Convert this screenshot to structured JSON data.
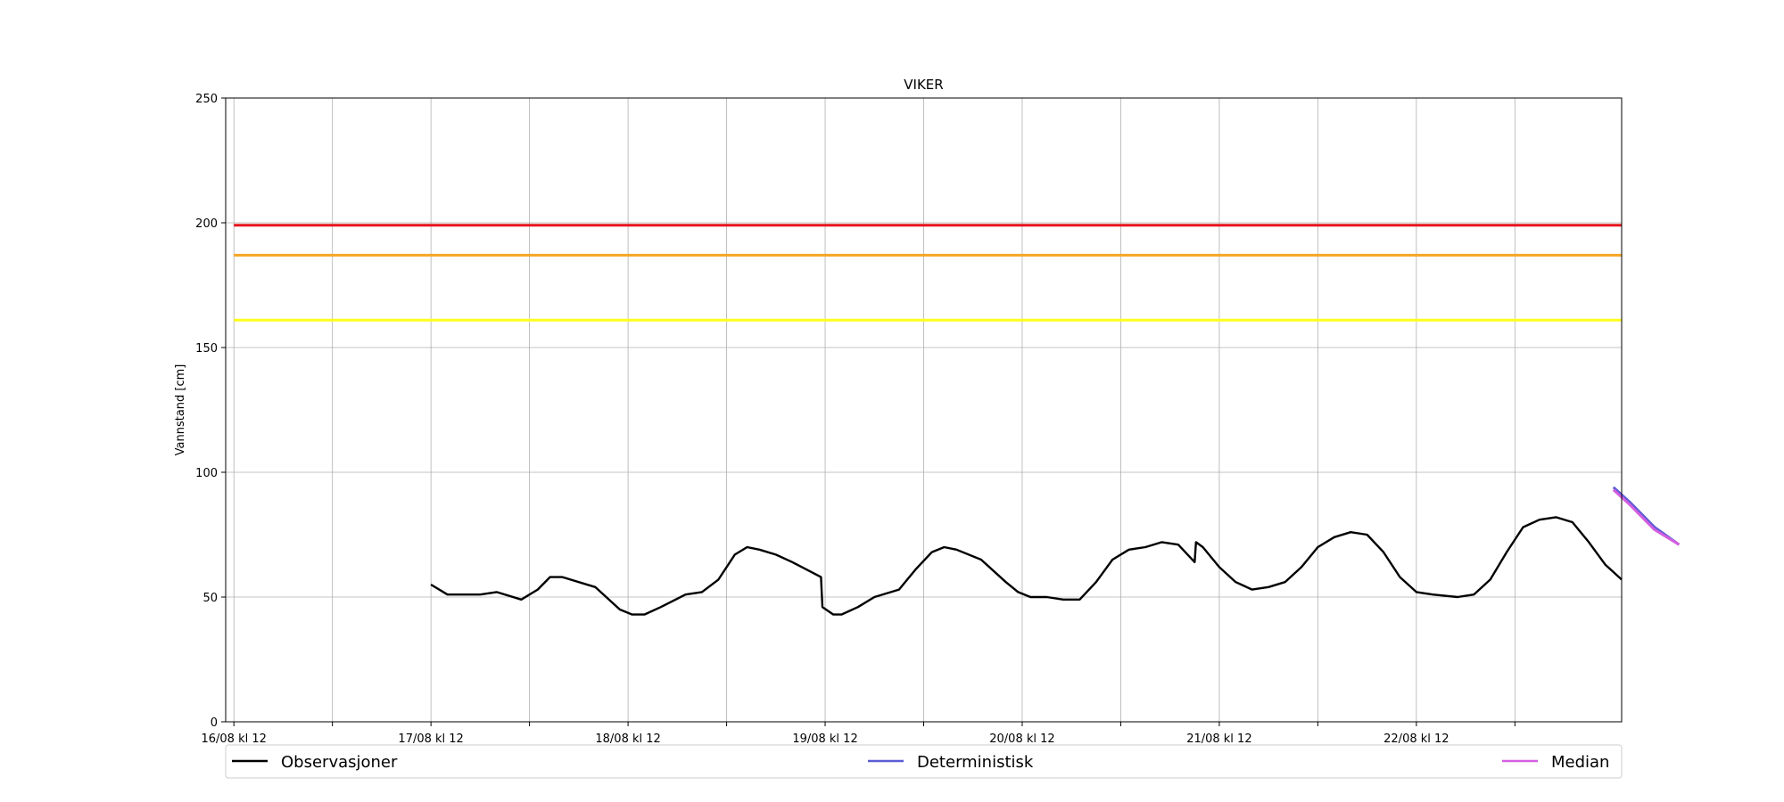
{
  "chart_data": {
    "type": "line",
    "title": "VIKER",
    "ylabel": "Vannstand [cm]",
    "xlabel": "",
    "ylim": [
      0,
      250
    ],
    "yticks": [
      0,
      50,
      100,
      150,
      200,
      250
    ],
    "xlim": [
      "2023-08-16T11:00",
      "2023-08-23T13:00"
    ],
    "xticks": [
      {
        "x": "2023-08-16T12:00",
        "label": "16/08 kl 12"
      },
      {
        "x": "2023-08-17T00:00",
        "label": ""
      },
      {
        "x": "2023-08-17T12:00",
        "label": "17/08 kl 12"
      },
      {
        "x": "2023-08-18T00:00",
        "label": ""
      },
      {
        "x": "2023-08-18T12:00",
        "label": "18/08 kl 12"
      },
      {
        "x": "2023-08-19T00:00",
        "label": ""
      },
      {
        "x": "2023-08-19T12:00",
        "label": "19/08 kl 12"
      },
      {
        "x": "2023-08-20T00:00",
        "label": ""
      },
      {
        "x": "2023-08-20T12:00",
        "label": "20/08 kl 12"
      },
      {
        "x": "2023-08-21T00:00",
        "label": ""
      },
      {
        "x": "2023-08-21T12:00",
        "label": "21/08 kl 12"
      },
      {
        "x": "2023-08-22T00:00",
        "label": ""
      },
      {
        "x": "2023-08-22T12:00",
        "label": "22/08 kl 12"
      },
      {
        "x": "2023-08-23T00:00",
        "label": ""
      }
    ],
    "grid": true,
    "legend_placement": "bottom",
    "threshold_lines": [
      {
        "y": 199,
        "color": "#e8141c"
      },
      {
        "y": 187,
        "color": "#f5a623"
      },
      {
        "y": 161,
        "color": "#ffff1a"
      }
    ],
    "series": [
      {
        "name": "Observasjoner",
        "color": "#000000",
        "points": [
          [
            "2023-08-17T12:00",
            55
          ],
          [
            "2023-08-17T14:00",
            51
          ],
          [
            "2023-08-17T18:00",
            51
          ],
          [
            "2023-08-17T20:00",
            52
          ],
          [
            "2023-08-17T23:00",
            49
          ],
          [
            "2023-08-18T01:00",
            53
          ],
          [
            "2023-08-18T02:30",
            58
          ],
          [
            "2023-08-18T04:00",
            58
          ],
          [
            "2023-08-18T08:00",
            54
          ],
          [
            "2023-08-18T11:00",
            45
          ],
          [
            "2023-08-18T12:30",
            43
          ],
          [
            "2023-08-18T14:00",
            43
          ],
          [
            "2023-08-18T16:00",
            46
          ],
          [
            "2023-08-18T19:00",
            51
          ],
          [
            "2023-08-18T21:00",
            52
          ],
          [
            "2023-08-18T23:00",
            57
          ],
          [
            "2023-08-19T01:00",
            67
          ],
          [
            "2023-08-19T02:30",
            70
          ],
          [
            "2023-08-19T04:00",
            69
          ],
          [
            "2023-08-19T06:00",
            67
          ],
          [
            "2023-08-19T08:00",
            64
          ],
          [
            "2023-08-19T11:30",
            58
          ],
          [
            "2023-08-19T11:40",
            46
          ],
          [
            "2023-08-19T13:00",
            43
          ],
          [
            "2023-08-19T14:00",
            43
          ],
          [
            "2023-08-19T16:00",
            46
          ],
          [
            "2023-08-19T18:00",
            50
          ],
          [
            "2023-08-19T21:00",
            53
          ],
          [
            "2023-08-19T23:00",
            61
          ],
          [
            "2023-08-20T01:00",
            68
          ],
          [
            "2023-08-20T02:30",
            70
          ],
          [
            "2023-08-20T04:00",
            69
          ],
          [
            "2023-08-20T07:00",
            65
          ],
          [
            "2023-08-20T10:00",
            56
          ],
          [
            "2023-08-20T11:30",
            52
          ],
          [
            "2023-08-20T13:00",
            50
          ],
          [
            "2023-08-20T15:00",
            50
          ],
          [
            "2023-08-20T17:00",
            49
          ],
          [
            "2023-08-20T19:00",
            49
          ],
          [
            "2023-08-20T21:00",
            56
          ],
          [
            "2023-08-20T23:00",
            65
          ],
          [
            "2023-08-21T01:00",
            69
          ],
          [
            "2023-08-21T03:00",
            70
          ],
          [
            "2023-08-21T05:00",
            72
          ],
          [
            "2023-08-21T07:00",
            71
          ],
          [
            "2023-08-21T09:00",
            64
          ],
          [
            "2023-08-21T09:10",
            72
          ],
          [
            "2023-08-21T10:00",
            70
          ],
          [
            "2023-08-21T12:00",
            62
          ],
          [
            "2023-08-21T14:00",
            56
          ],
          [
            "2023-08-21T16:00",
            53
          ],
          [
            "2023-08-21T18:00",
            54
          ],
          [
            "2023-08-21T20:00",
            56
          ],
          [
            "2023-08-21T22:00",
            62
          ],
          [
            "2023-08-22T00:00",
            70
          ],
          [
            "2023-08-22T02:00",
            74
          ],
          [
            "2023-08-22T04:00",
            76
          ],
          [
            "2023-08-22T06:00",
            75
          ],
          [
            "2023-08-22T08:00",
            68
          ],
          [
            "2023-08-22T10:00",
            58
          ],
          [
            "2023-08-22T12:00",
            52
          ],
          [
            "2023-08-22T14:00",
            51
          ],
          [
            "2023-08-22T17:00",
            50
          ],
          [
            "2023-08-22T19:00",
            51
          ],
          [
            "2023-08-22T21:00",
            57
          ],
          [
            "2023-08-22T23:00",
            68
          ],
          [
            "2023-08-23T01:00",
            78
          ],
          [
            "2023-08-23T03:00",
            81
          ],
          [
            "2023-08-23T05:00",
            82
          ],
          [
            "2023-08-23T07:00",
            80
          ],
          [
            "2023-08-23T09:00",
            72
          ],
          [
            "2023-08-23T11:00",
            63
          ],
          [
            "2023-08-23T13:00",
            57
          ]
        ]
      },
      {
        "name": "Deterministisk",
        "color": "#5b5bd6",
        "points": [
          [
            "2023-08-23T12:00",
            94
          ],
          [
            "2023-08-23T14:00",
            88
          ],
          [
            "2023-08-23T17:00",
            78
          ],
          [
            "2023-08-23T20:00",
            71
          ]
        ]
      },
      {
        "name": "Median",
        "color": "#d35fe0",
        "points": [
          [
            "2023-08-23T12:00",
            93
          ],
          [
            "2023-08-23T14:00",
            87
          ],
          [
            "2023-08-23T17:00",
            77
          ],
          [
            "2023-08-23T20:00",
            71
          ]
        ]
      }
    ]
  }
}
